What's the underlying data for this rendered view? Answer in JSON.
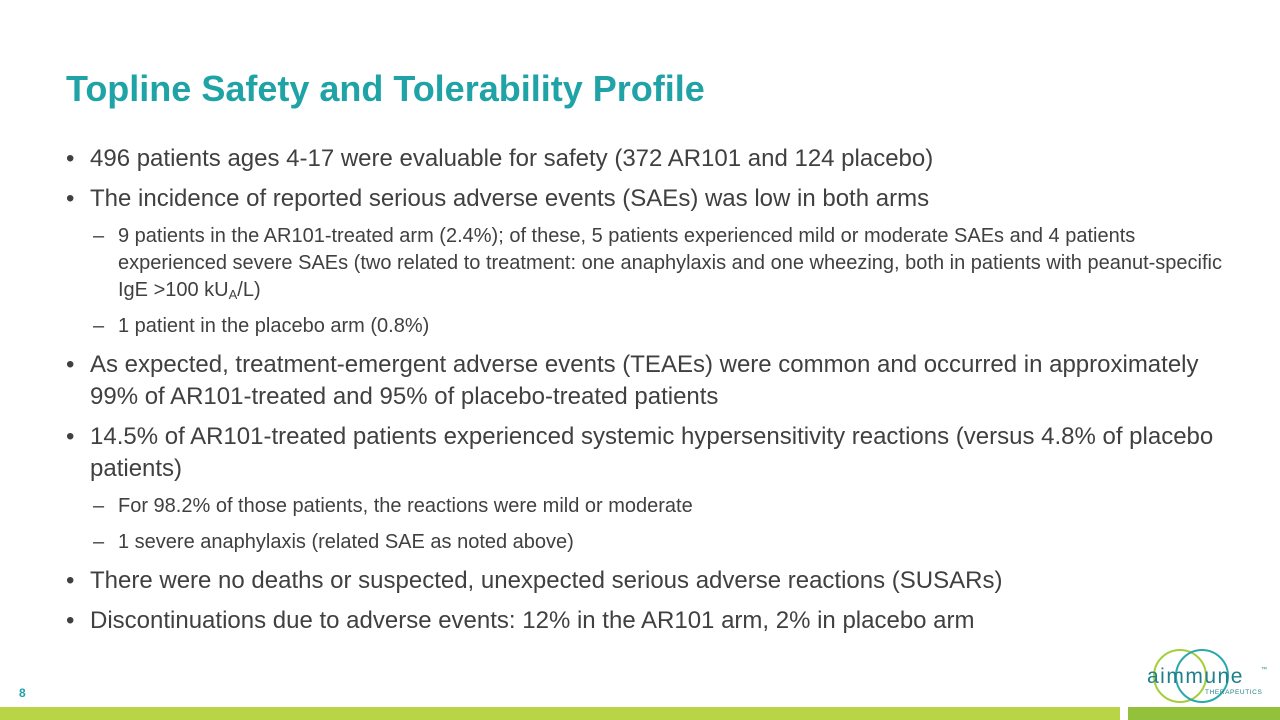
{
  "title": "Topline Safety and Tolerability Profile",
  "bullet_symbol": "•",
  "dash_symbol": "–",
  "bullets": {
    "b1": "496 patients ages 4-17 were evaluable for safety (372 AR101 and 124 placebo)",
    "b2": "The incidence of reported serious adverse events (SAEs) was low in both arms",
    "b2_s1_text": "9 patients in the AR101-treated arm (2.4%); of these, 5 patients experienced mild or moderate SAEs and 4 patients experienced severe SAEs (two related to treatment: one anaphylaxis and one wheezing, both in patients with peanut-specific IgE >100 kU",
    "b2_s1_sub": "A",
    "b2_s1_tail": "/L)",
    "b2_s2": "1 patient in the placebo arm (0.8%)",
    "b3": "As expected, treatment-emergent adverse events (TEAEs) were common and occurred in approximately 99% of AR101-treated and 95% of placebo-treated patients",
    "b4": "14.5% of AR101-treated patients experienced systemic hypersensitivity reactions (versus 4.8% of placebo patients)",
    "b4_s1": "For 98.2% of those patients, the reactions were mild or moderate",
    "b4_s2": "1 severe anaphylaxis (related SAE as noted above)",
    "b5": "There were no deaths or suspected, unexpected serious adverse reactions (SUSARs)",
    "b6": "Discontinuations due to adverse events: 12% in the AR101 arm, 2% in placebo arm"
  },
  "page_number": "8",
  "logo": {
    "name": "aimmune",
    "trademark": "™",
    "subtitle": "THERAPEUTICS"
  },
  "colors": {
    "title": "#1fa3a6",
    "body_text": "#404040",
    "footer_bar": "#b9d446",
    "footer_bar_accent": "#93c13b"
  }
}
